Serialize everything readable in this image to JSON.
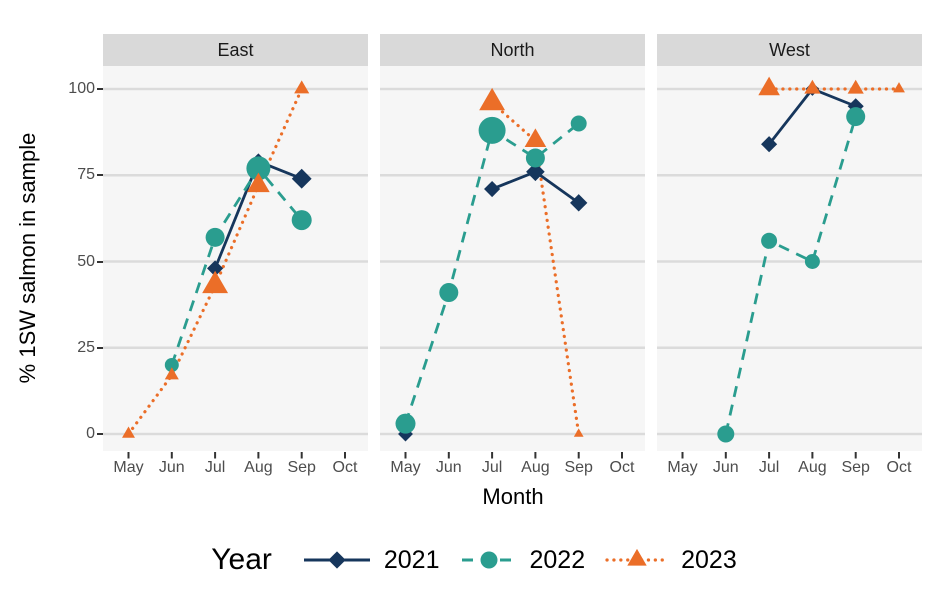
{
  "figure": {
    "y_axis": {
      "title": "% 1SW salmon in sample",
      "ticks": [
        0,
        25,
        50,
        75,
        100
      ],
      "limits": [
        0,
        100
      ]
    },
    "x_axis": {
      "title": "Month",
      "categories": [
        "May",
        "Jun",
        "Jul",
        "Aug",
        "Sep",
        "Oct"
      ]
    },
    "legend": {
      "title": "Year",
      "entries": [
        "2021",
        "2022",
        "2023"
      ]
    },
    "theme": {
      "panel_bg": "#F6F6F6",
      "grid_color": "#DBDBDB",
      "strip_bg": "#D9D9D9",
      "tick_mark_color": "#333333",
      "tick_label_color": "#4D4D4D"
    }
  },
  "chart_data": {
    "type": "line",
    "title": "",
    "xlabel": "Month",
    "ylabel": "% 1SW salmon in sample",
    "ylim": [
      0,
      100
    ],
    "grid": "horizontal-major-only",
    "legend_position": "bottom",
    "series_styles": [
      {
        "name": "2021",
        "color": "#16365C",
        "dash": "solid",
        "marker": "diamond"
      },
      {
        "name": "2022",
        "color": "#2A9D8F",
        "dash": "dashed",
        "marker": "circle"
      },
      {
        "name": "2023",
        "color": "#EB6E28",
        "dash": "dotted",
        "marker": "triangle"
      }
    ],
    "facets": [
      {
        "label": "East",
        "series": [
          {
            "name": "2021",
            "points": [
              {
                "month": "Jul",
                "value": 48,
                "size": 13
              },
              {
                "month": "Aug",
                "value": 79,
                "size": 13
              },
              {
                "month": "Sep",
                "value": 74,
                "size": 16
              }
            ]
          },
          {
            "name": "2022",
            "points": [
              {
                "month": "Jun",
                "value": 20,
                "size": 14
              },
              {
                "month": "Jul",
                "value": 57,
                "size": 19
              },
              {
                "month": "Aug",
                "value": 77,
                "size": 24
              },
              {
                "month": "Sep",
                "value": 62,
                "size": 20
              }
            ]
          },
          {
            "name": "2023",
            "points": [
              {
                "month": "May",
                "value": 0,
                "size": 12
              },
              {
                "month": "Jun",
                "value": 17,
                "size": 13
              },
              {
                "month": "Jul",
                "value": 43,
                "size": 24
              },
              {
                "month": "Aug",
                "value": 72,
                "size": 21
              },
              {
                "month": "Sep",
                "value": 100,
                "size": 14
              }
            ]
          }
        ]
      },
      {
        "label": "North",
        "series": [
          {
            "name": "2021",
            "points": [
              {
                "month": "May",
                "value": 0,
                "size": 12
              },
              {
                "month": "Jul",
                "value": 71,
                "size": 13
              },
              {
                "month": "Aug",
                "value": 76,
                "size": 15
              },
              {
                "month": "Sep",
                "value": 67,
                "size": 14
              }
            ]
          },
          {
            "name": "2022",
            "points": [
              {
                "month": "May",
                "value": 3,
                "size": 20
              },
              {
                "month": "Jun",
                "value": 41,
                "size": 19
              },
              {
                "month": "Jul",
                "value": 88,
                "size": 27
              },
              {
                "month": "Aug",
                "value": 80,
                "size": 19
              },
              {
                "month": "Sep",
                "value": 90,
                "size": 16
              }
            ]
          },
          {
            "name": "2023",
            "points": [
              {
                "month": "Jul",
                "value": 96,
                "size": 24
              },
              {
                "month": "Aug",
                "value": 85,
                "size": 20
              },
              {
                "month": "Sep",
                "value": 0,
                "size": 9
              }
            ]
          }
        ]
      },
      {
        "label": "West",
        "series": [
          {
            "name": "2021",
            "points": [
              {
                "month": "Jul",
                "value": 84,
                "size": 13
              },
              {
                "month": "Aug",
                "value": 100,
                "size": 11
              },
              {
                "month": "Sep",
                "value": 95,
                "size": 13
              }
            ]
          },
          {
            "name": "2022",
            "points": [
              {
                "month": "Jun",
                "value": 0,
                "size": 17
              },
              {
                "month": "Jul",
                "value": 56,
                "size": 16
              },
              {
                "month": "Aug",
                "value": 50,
                "size": 15
              },
              {
                "month": "Sep",
                "value": 92,
                "size": 19
              }
            ]
          },
          {
            "name": "2023",
            "points": [
              {
                "month": "Jul",
                "value": 100,
                "size": 20
              },
              {
                "month": "Aug",
                "value": 100,
                "size": 15
              },
              {
                "month": "Sep",
                "value": 100,
                "size": 15
              },
              {
                "month": "Oct",
                "value": 100,
                "size": 11
              }
            ]
          }
        ]
      }
    ]
  }
}
